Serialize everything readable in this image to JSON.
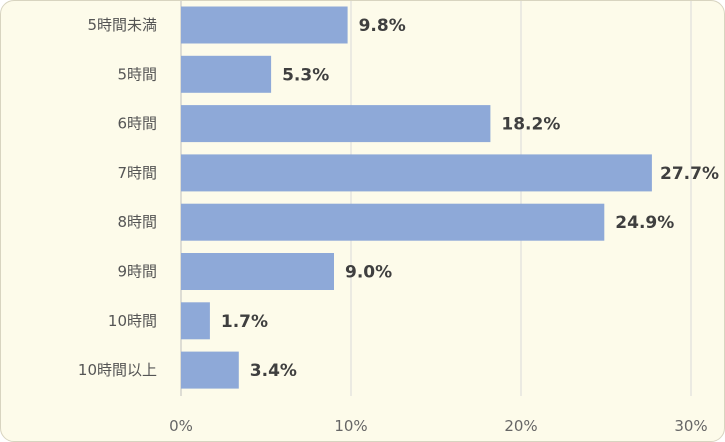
{
  "chart_data": {
    "type": "bar",
    "orientation": "horizontal",
    "categories": [
      "5時間未満",
      "5時間",
      "6時間",
      "7時間",
      "8時間",
      "9時間",
      "10時間",
      "10時間以上"
    ],
    "values": [
      9.8,
      5.3,
      18.2,
      27.7,
      24.9,
      9.0,
      1.7,
      3.4
    ],
    "value_labels": [
      "9.8%",
      "5.3%",
      "18.2%",
      "27.7%",
      "24.9%",
      "9.0%",
      "1.7%",
      "3.4%"
    ],
    "x_ticks": [
      0,
      10,
      20,
      30
    ],
    "x_tick_labels": [
      "0%",
      "10%",
      "20%",
      "30%"
    ],
    "xlim": [
      0,
      30
    ],
    "title": "",
    "xlabel": "",
    "ylabel": "",
    "grid": true,
    "legend": "none",
    "bar_color": "#8ea9d8",
    "background_color": "#fdfbea"
  }
}
